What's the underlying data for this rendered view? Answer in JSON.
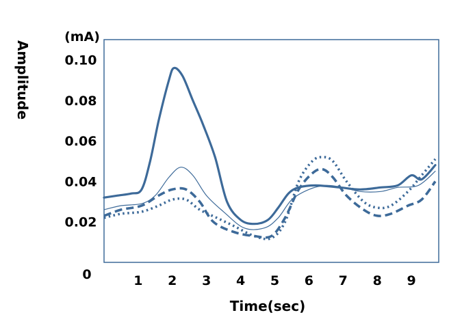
{
  "chart_data": {
    "type": "line",
    "title": "",
    "xlabel": "Time(sec)",
    "ylabel": "Amplitude",
    "yunit": "(mA)",
    "xlim": [
      0,
      9.8
    ],
    "ylim": [
      0,
      0.11
    ],
    "origin_label": "0",
    "x_ticks": [
      1,
      2,
      3,
      4,
      5,
      6,
      7,
      8,
      9
    ],
    "x_tick_labels": [
      "1",
      "2",
      "3",
      "4",
      "5",
      "6",
      "7",
      "8",
      "9"
    ],
    "y_ticks": [
      0.02,
      0.04,
      0.06,
      0.08,
      0.1
    ],
    "y_tick_labels": [
      "0.02",
      "0.04",
      "0.06",
      "0.08",
      "0.10"
    ],
    "grid": false,
    "legend": "none",
    "color": "#3d6a99",
    "series": [
      {
        "style": "solid-thick",
        "points": [
          [
            0,
            0.032
          ],
          [
            0.4,
            0.033
          ],
          [
            0.8,
            0.034
          ],
          [
            1.1,
            0.036
          ],
          [
            1.35,
            0.05
          ],
          [
            1.6,
            0.07
          ],
          [
            1.9,
            0.09
          ],
          [
            2.05,
            0.096
          ],
          [
            2.3,
            0.092
          ],
          [
            2.6,
            0.08
          ],
          [
            2.9,
            0.068
          ],
          [
            3.25,
            0.052
          ],
          [
            3.6,
            0.03
          ],
          [
            4.0,
            0.021
          ],
          [
            4.4,
            0.019
          ],
          [
            4.8,
            0.021
          ],
          [
            5.1,
            0.027
          ],
          [
            5.4,
            0.034
          ],
          [
            5.7,
            0.037
          ],
          [
            6.2,
            0.038
          ],
          [
            6.9,
            0.037
          ],
          [
            7.5,
            0.036
          ],
          [
            8.1,
            0.037
          ],
          [
            8.6,
            0.038
          ],
          [
            9.0,
            0.043
          ],
          [
            9.3,
            0.041
          ],
          [
            9.7,
            0.048
          ]
        ]
      },
      {
        "style": "solid-thin",
        "points": [
          [
            0,
            0.026
          ],
          [
            0.5,
            0.028
          ],
          [
            1.1,
            0.029
          ],
          [
            1.5,
            0.033
          ],
          [
            1.9,
            0.042
          ],
          [
            2.25,
            0.047
          ],
          [
            2.6,
            0.043
          ],
          [
            3.0,
            0.033
          ],
          [
            3.5,
            0.025
          ],
          [
            4.1,
            0.017
          ],
          [
            4.7,
            0.017
          ],
          [
            5.1,
            0.022
          ],
          [
            5.5,
            0.031
          ],
          [
            6.0,
            0.036
          ],
          [
            6.5,
            0.038
          ],
          [
            7.0,
            0.037
          ],
          [
            7.5,
            0.035
          ],
          [
            8.1,
            0.035
          ],
          [
            8.6,
            0.037
          ],
          [
            9.2,
            0.038
          ],
          [
            9.7,
            0.045
          ]
        ]
      },
      {
        "style": "dashed",
        "points": [
          [
            0,
            0.023
          ],
          [
            0.5,
            0.026
          ],
          [
            1.1,
            0.028
          ],
          [
            1.6,
            0.033
          ],
          [
            2.0,
            0.036
          ],
          [
            2.4,
            0.036
          ],
          [
            2.8,
            0.03
          ],
          [
            3.2,
            0.02
          ],
          [
            3.8,
            0.015
          ],
          [
            4.4,
            0.013
          ],
          [
            4.9,
            0.013
          ],
          [
            5.3,
            0.022
          ],
          [
            5.7,
            0.036
          ],
          [
            6.1,
            0.044
          ],
          [
            6.4,
            0.046
          ],
          [
            6.7,
            0.042
          ],
          [
            7.1,
            0.033
          ],
          [
            7.6,
            0.026
          ],
          [
            8.0,
            0.023
          ],
          [
            8.4,
            0.024
          ],
          [
            8.9,
            0.028
          ],
          [
            9.3,
            0.031
          ],
          [
            9.7,
            0.04
          ]
        ]
      },
      {
        "style": "dotted",
        "points": [
          [
            0,
            0.022
          ],
          [
            0.5,
            0.024
          ],
          [
            1.1,
            0.025
          ],
          [
            1.6,
            0.028
          ],
          [
            2.0,
            0.031
          ],
          [
            2.4,
            0.031
          ],
          [
            2.8,
            0.026
          ],
          [
            3.3,
            0.022
          ],
          [
            3.8,
            0.018
          ],
          [
            4.4,
            0.013
          ],
          [
            4.9,
            0.012
          ],
          [
            5.3,
            0.02
          ],
          [
            5.7,
            0.04
          ],
          [
            6.1,
            0.05
          ],
          [
            6.4,
            0.052
          ],
          [
            6.7,
            0.05
          ],
          [
            7.1,
            0.04
          ],
          [
            7.6,
            0.03
          ],
          [
            8.0,
            0.027
          ],
          [
            8.4,
            0.028
          ],
          [
            8.9,
            0.035
          ],
          [
            9.3,
            0.043
          ],
          [
            9.7,
            0.051
          ]
        ]
      }
    ]
  }
}
